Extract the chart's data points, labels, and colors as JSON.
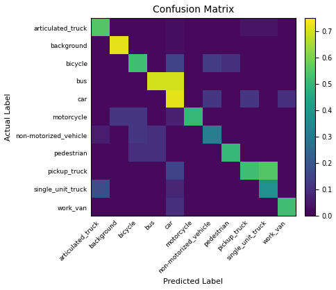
{
  "title": "Confusion Matrix",
  "xlabel": "Predicted Label",
  "ylabel": "Actual Label",
  "classes": [
    "articulated_truck",
    "background",
    "bicycle",
    "bus",
    "car",
    "motorcycle",
    "non-motorized_vehicle",
    "pedestrian",
    "pickup_truck",
    "single_unit_truck",
    "work_van"
  ],
  "matrix": [
    [
      0.55,
      0.02,
      0.02,
      0.02,
      0.03,
      0.02,
      0.02,
      0.02,
      0.04,
      0.04,
      0.02
    ],
    [
      0.02,
      0.72,
      0.02,
      0.02,
      0.03,
      0.02,
      0.02,
      0.02,
      0.02,
      0.02,
      0.02
    ],
    [
      0.02,
      0.02,
      0.52,
      0.02,
      0.15,
      0.02,
      0.13,
      0.1,
      0.02,
      0.02,
      0.02
    ],
    [
      0.02,
      0.02,
      0.02,
      0.7,
      0.7,
      0.02,
      0.02,
      0.02,
      0.02,
      0.02,
      0.02
    ],
    [
      0.02,
      0.02,
      0.02,
      0.02,
      0.72,
      0.02,
      0.12,
      0.02,
      0.12,
      0.02,
      0.1
    ],
    [
      0.02,
      0.12,
      0.12,
      0.02,
      0.07,
      0.5,
      0.02,
      0.02,
      0.02,
      0.02,
      0.02
    ],
    [
      0.06,
      0.02,
      0.12,
      0.1,
      0.02,
      0.02,
      0.32,
      0.02,
      0.02,
      0.02,
      0.02
    ],
    [
      0.02,
      0.02,
      0.1,
      0.1,
      0.02,
      0.02,
      0.02,
      0.5,
      0.02,
      0.02,
      0.02
    ],
    [
      0.02,
      0.02,
      0.02,
      0.02,
      0.15,
      0.02,
      0.02,
      0.02,
      0.52,
      0.55,
      0.02
    ],
    [
      0.18,
      0.02,
      0.02,
      0.02,
      0.08,
      0.02,
      0.02,
      0.02,
      0.02,
      0.38,
      0.02
    ],
    [
      0.02,
      0.02,
      0.02,
      0.02,
      0.1,
      0.02,
      0.02,
      0.02,
      0.02,
      0.02,
      0.52
    ]
  ],
  "cmap": "viridis",
  "vmin": 0.0,
  "vmax": 0.75,
  "figsize": [
    4.85,
    4.18
  ],
  "dpi": 100,
  "title_fontsize": 10,
  "label_fontsize": 8,
  "tick_fontsize": 6.5
}
